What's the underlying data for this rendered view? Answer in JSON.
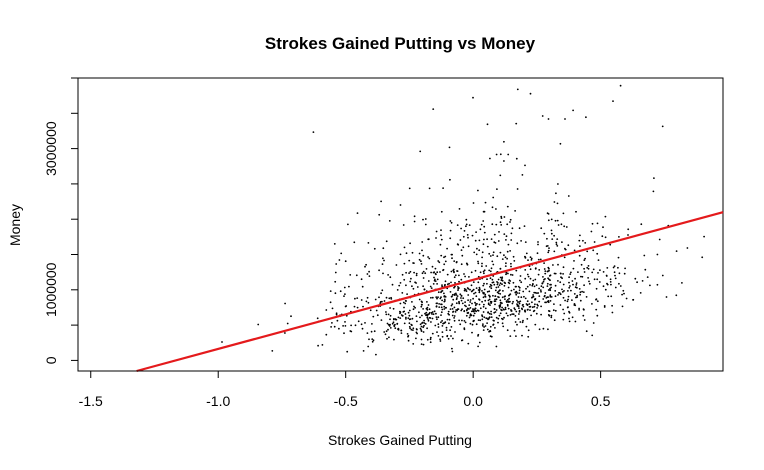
{
  "chart_data": {
    "type": "scatter",
    "title": "Strokes Gained Putting vs Money",
    "xlabel": "Strokes Gained Putting",
    "ylabel": "Money",
    "xlim": [
      -1.55,
      0.98
    ],
    "ylim": [
      -150000,
      4000000
    ],
    "x_ticks": [
      -1.5,
      -1.0,
      -0.5,
      0.0,
      0.5
    ],
    "x_tick_labels": [
      "-1.5",
      "-1.0",
      "-0.5",
      "0.0",
      "0.5"
    ],
    "y_ticks": [
      0,
      1000000,
      2000000,
      3000000
    ],
    "y_tick_labels": [
      "0",
      "1000000",
      "",
      "3000000"
    ],
    "grid": false,
    "point_count": 1400,
    "point_color": "#000000",
    "regression_line": {
      "color": "#e41a1c",
      "x": [
        -1.32,
        0.98
      ],
      "y": [
        -150000,
        2100000
      ]
    }
  }
}
